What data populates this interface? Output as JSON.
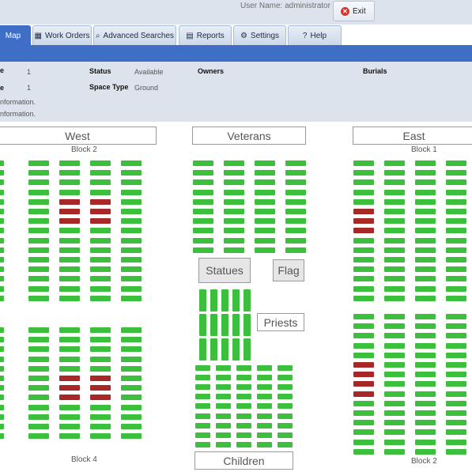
{
  "header": {
    "user_label": "User Name: administrator",
    "exit_label": "Exit"
  },
  "tabs": [
    {
      "label": "Map",
      "icon": "map-icon",
      "active": true
    },
    {
      "label": "Work Orders",
      "icon": "work-orders-icon"
    },
    {
      "label": "Advanced Searches",
      "icon": "search-icon"
    },
    {
      "label": "Reports",
      "icon": "report-icon"
    },
    {
      "label": "Settings",
      "icon": "settings-icon"
    },
    {
      "label": "Help",
      "icon": "help-icon"
    }
  ],
  "info": {
    "field1_suffix": "e",
    "field1_value": "1",
    "field2_value": "1",
    "status_label": "Status",
    "status_value": "Available",
    "space_type_label": "Space Type",
    "space_type_value": "Ground",
    "owners_label": "Owners",
    "burials_label": "Burials",
    "note1": "nformation.",
    "note2": "nformation."
  },
  "map": {
    "sections": {
      "west": "West",
      "veterans": "Veterans",
      "east": "East",
      "children": "Children"
    },
    "features": {
      "statues": "Statues",
      "flag": "Flag",
      "priests": "Priests"
    },
    "block_labels": {
      "west_top": "Block 2",
      "west_bottom": "Block 4",
      "east_top": "Block 1",
      "east_bottom": "Block 2"
    }
  },
  "colors": {
    "available": "#3cbf3c",
    "occupied": "#a82828",
    "accent": "#3f6ec7"
  }
}
